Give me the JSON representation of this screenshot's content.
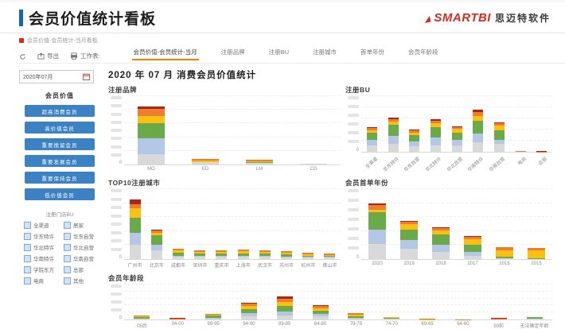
{
  "frame": {
    "title": "会员价值统计看板"
  },
  "logo": {
    "brand": "SMARTBI",
    "company": "思迈特软件"
  },
  "breadcrumb": "会员价值-会员统计-当月看板",
  "toolbar": {
    "export": "导出",
    "worksheet": "工作表:"
  },
  "tabs": [
    {
      "label": "会员价值-会员统计-当月",
      "active": true
    },
    {
      "label": "注册品牌",
      "active": false
    },
    {
      "label": "注册BU",
      "active": false
    },
    {
      "label": "注册城市",
      "active": false
    },
    {
      "label": "首单年份",
      "active": false
    },
    {
      "label": "会员年龄段",
      "active": false
    }
  ],
  "sidebar": {
    "date_value": "2020年07月",
    "value_section_label": "会员价值",
    "value_buttons": [
      "超高消费会员",
      "高价值会员",
      "重要挽留会员",
      "重要发展会员",
      "重要保持会员",
      "低价值会员"
    ],
    "bu_section_label": "注册门店BU",
    "bu_options": [
      "全渠道",
      "居家",
      "华东特许",
      "华东自营",
      "华北特许",
      "华北自营",
      "华南特许",
      "华南自营",
      "学院东方",
      "总部",
      "电商",
      "其他"
    ]
  },
  "main": {
    "title": "2020 年 07 月 消费会员价值统计"
  },
  "colors": {
    "accent_blue": "#1565c0",
    "brand_red": "#d42b1e",
    "tab_active_underline": "#ef8200",
    "filter_button_blue": "#3b82c4"
  },
  "chart_data": [
    {
      "id": "brand",
      "type": "stacked-bar",
      "title": "注册品牌",
      "y_zero_label": "0",
      "y_tick_labels_blurred": true,
      "categories": [
        "MO",
        "ED",
        "LM",
        "CG"
      ],
      "series_colors": [
        "#d9d9d9",
        "#b4c7e7",
        "#6aaa4b",
        "#fdc010",
        "#ed7d31",
        "#b02418"
      ],
      "stacks": [
        [
          15,
          23,
          22,
          11,
          10,
          4
        ],
        [
          3,
          0,
          1,
          2,
          2,
          0
        ],
        [
          2,
          0,
          1,
          2,
          2,
          0
        ],
        [
          1,
          0,
          0,
          0,
          0,
          0
        ]
      ],
      "rotate": false
    },
    {
      "id": "bu",
      "type": "stacked-bar",
      "title": "注册BU",
      "y_zero_label": "0",
      "y_tick_labels_blurred": true,
      "categories": [
        "全渠道",
        "华东特许",
        "华东自营",
        "华北特许",
        "华北自营",
        "华南特许",
        "华南自营",
        "电商",
        "总部"
      ],
      "series_colors": [
        "#d9d9d9",
        "#b4c7e7",
        "#6aaa4b",
        "#fdc010",
        "#ed7d31",
        "#b02418"
      ],
      "stacks": [
        [
          11,
          11,
          12,
          5,
          4,
          2
        ],
        [
          14,
          14,
          20,
          6,
          5,
          3
        ],
        [
          10,
          8,
          12,
          5,
          4,
          1
        ],
        [
          12,
          14,
          18,
          7,
          5,
          2
        ],
        [
          12,
          10,
          13,
          6,
          4,
          1
        ],
        [
          17,
          16,
          23,
          9,
          7,
          4
        ],
        [
          14,
          7,
          18,
          8,
          5,
          1
        ],
        [
          0,
          0,
          0,
          0,
          1,
          1
        ],
        [
          0,
          0,
          0,
          0,
          0.5,
          0.5
        ]
      ],
      "rotate": true
    },
    {
      "id": "city",
      "type": "stacked-bar",
      "title": "TOP10注册城市",
      "y_zero_label": "0",
      "y_tick_labels_blurred": true,
      "categories": [
        "广州市",
        "北京市",
        "成都市",
        "深圳市",
        "重庆市",
        "上海市",
        "武汉市",
        "苏州市",
        "杭州市",
        "佛山市"
      ],
      "series_colors": [
        "#d9d9d9",
        "#b4c7e7",
        "#6aaa4b",
        "#fdc010",
        "#ed7d31",
        "#b02418"
      ],
      "stacks": [
        [
          21,
          16,
          22,
          14,
          6,
          6
        ],
        [
          12,
          8,
          14,
          4,
          3,
          1
        ],
        [
          3,
          2,
          4,
          3,
          3,
          0
        ],
        [
          3,
          2,
          3,
          2,
          3,
          0
        ],
        [
          3,
          2,
          3,
          2,
          3,
          0
        ],
        [
          3,
          2,
          3,
          3,
          3,
          0
        ],
        [
          3,
          2,
          3,
          2,
          3,
          0
        ],
        [
          2,
          2,
          3,
          2,
          2,
          0
        ],
        [
          2,
          1,
          2,
          2,
          2,
          0
        ],
        [
          2,
          1,
          2,
          1,
          2,
          0
        ]
      ],
      "rotate": false
    },
    {
      "id": "year",
      "type": "stacked-bar",
      "title": "会员首单年份",
      "y_zero_label": "0",
      "y_tick_labels_blurred": true,
      "categories": [
        "2020",
        "2019",
        "2018",
        "2017",
        "2016",
        "2015"
      ],
      "series_colors": [
        "#d9d9d9",
        "#b4c7e7",
        "#6aaa4b",
        "#fdc010",
        "#ed7d31",
        "#b02418"
      ],
      "stacks": [
        [
          22,
          20,
          25,
          3,
          7,
          3
        ],
        [
          15,
          12,
          15,
          8,
          3,
          2
        ],
        [
          10,
          10,
          15,
          6,
          3,
          1
        ],
        [
          5,
          5,
          10,
          9,
          3,
          1
        ],
        [
          1,
          0,
          2,
          10,
          4,
          0
        ],
        [
          0,
          0,
          1,
          11,
          4,
          0
        ]
      ],
      "rotate": false
    },
    {
      "id": "age",
      "type": "stacked-bar",
      "title": "会员年龄段",
      "y_zero_label": "0",
      "y_tick_labels_blurred": true,
      "categories": [
        "05后",
        "04-00",
        "99-95",
        "94-90",
        "89-85",
        "84-80",
        "79-75",
        "74-70",
        "69-65",
        "64-60",
        "59前",
        "无法确定年龄"
      ],
      "series_colors": [
        "#d9d9d9",
        "#b4c7e7",
        "#6aaa4b",
        "#fdc010",
        "#ed7d31",
        "#b02418"
      ],
      "stacks": [
        [
          2,
          0,
          4,
          3,
          3,
          0
        ],
        [
          0,
          0,
          0,
          0,
          3,
          1
        ],
        [
          3,
          2,
          7,
          2,
          2,
          0
        ],
        [
          10,
          8,
          12,
          8,
          7,
          3
        ],
        [
          12,
          10,
          16,
          12,
          10,
          5
        ],
        [
          8,
          7,
          10,
          8,
          6,
          3
        ],
        [
          3,
          2,
          5,
          4,
          4,
          0
        ],
        [
          2,
          0,
          2,
          2,
          2,
          0
        ],
        [
          0,
          0,
          0,
          1,
          2,
          0
        ],
        [
          0,
          0,
          0,
          0,
          1,
          0
        ],
        [
          0,
          0,
          0,
          0,
          3,
          1
        ],
        [
          2,
          0,
          4,
          0,
          2,
          0
        ]
      ],
      "rotate": false
    }
  ]
}
